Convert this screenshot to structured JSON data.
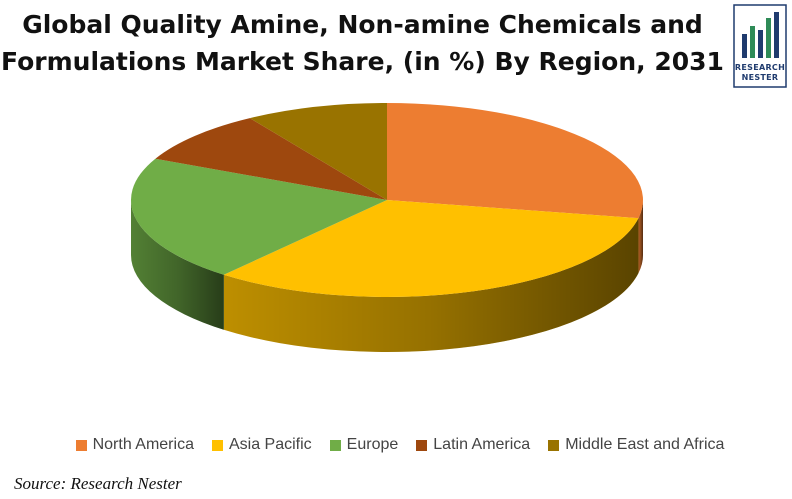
{
  "title_line1": "Global Quality Amine, Non-amine Chemicals and",
  "title_line2": "Formulations Market Share, (in %) By Region, 2031",
  "logo": {
    "text_line1": "RESEARCH",
    "text_line2": "NESTER",
    "color": "#1f3b6e",
    "accent": "#2e8b57"
  },
  "source": "Source: Research Nester",
  "chart_data": {
    "type": "pie",
    "style": "3d",
    "legend_position": "bottom",
    "categories": [
      "North America",
      "Asia Pacific",
      "Europe",
      "Latin America",
      "Middle East and Africa"
    ],
    "values": [
      28,
      33,
      21,
      9,
      9
    ],
    "colors": [
      "#ed7d31",
      "#ffc000",
      "#70ad47",
      "#9e480e",
      "#997300"
    ]
  }
}
